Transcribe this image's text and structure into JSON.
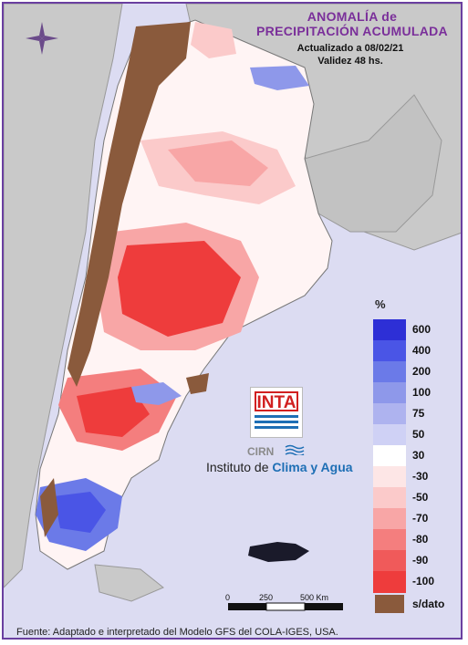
{
  "title": {
    "line1": "ANOMALÍA de",
    "line2": "PRECIPITACIÓN ACUMULADA"
  },
  "subtitle": {
    "updated": "Actualizado a 08/02/21",
    "validity": "Validez 48 hs."
  },
  "legend": {
    "unit": "%",
    "items": [
      {
        "label": "600",
        "color": "#2d2fd6"
      },
      {
        "label": "400",
        "color": "#4a55e6"
      },
      {
        "label": "200",
        "color": "#6b7ae8"
      },
      {
        "label": "100",
        "color": "#8e98ea"
      },
      {
        "label": "75",
        "color": "#aeb3ef"
      },
      {
        "label": "50",
        "color": "#cfd1f5"
      },
      {
        "label": "30",
        "color": "#ffffff"
      },
      {
        "label": "-30",
        "color": "#fde6e6"
      },
      {
        "label": "-50",
        "color": "#fbcaca"
      },
      {
        "label": "-70",
        "color": "#f8a6a6"
      },
      {
        "label": "-80",
        "color": "#f47e7e"
      },
      {
        "label": "-90",
        "color": "#f05a5a"
      },
      {
        "label": "-100",
        "color": "#ee3c3c"
      }
    ],
    "no_data": {
      "label": "s/dato",
      "color": "#8a5a3c"
    }
  },
  "logo": {
    "inta": "INTA",
    "cirn": "CIRN",
    "institute_prefix": "Instituto de ",
    "institute_highlight": "Clima y Agua"
  },
  "scale": {
    "labels": [
      "0",
      "250",
      "500 Km"
    ]
  },
  "footer": "Fuente: Adaptado e interpretado del Modelo GFS del COLA-IGES, USA."
}
